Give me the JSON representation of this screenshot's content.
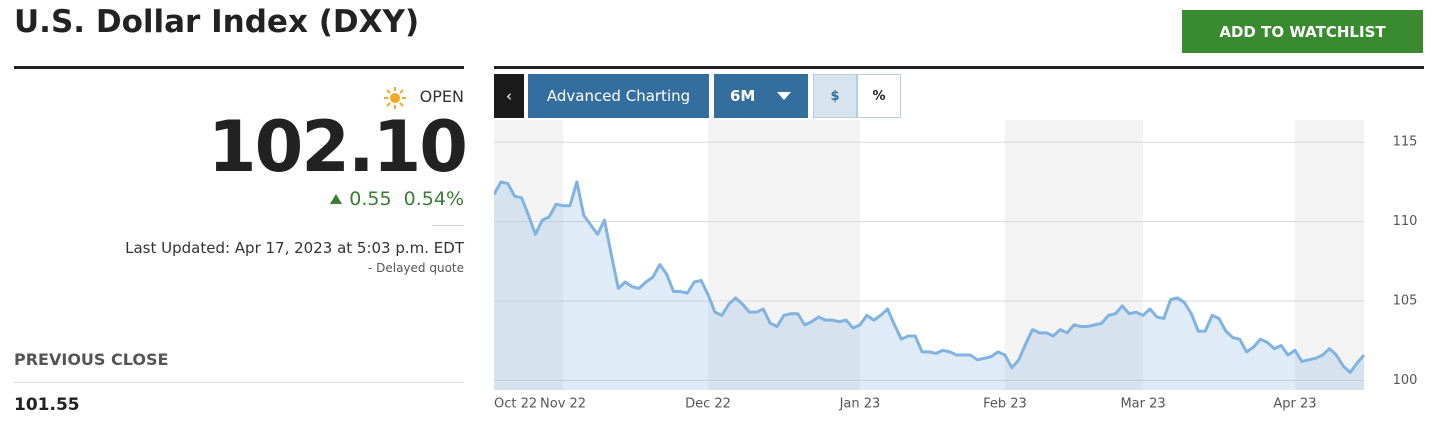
{
  "header": {
    "title": "U.S. Dollar Index (DXY)",
    "button": "ADD TO WATCHLIST"
  },
  "quote": {
    "status": "OPEN",
    "price": "102.10",
    "change": "0.55",
    "change_percent": "0.54%",
    "updated": "Last Updated: Apr 17, 2023 at 5:03 p.m. EDT",
    "delay": "-  Delayed quote",
    "previous_close_label": "PREVIOUS CLOSE",
    "previous_close": "101.55"
  },
  "toolbar": {
    "advanced": "Advanced Charting",
    "range": "6M",
    "dollar": "$",
    "percent": "%"
  },
  "chart_data": {
    "type": "area",
    "color": "#80b3e2",
    "categories": [
      "Oct 22",
      null,
      null,
      null,
      null,
      null,
      null,
      null,
      null,
      null,
      "Nov 22",
      null,
      null,
      null,
      null,
      null,
      null,
      null,
      null,
      null,
      null,
      null,
      null,
      null,
      null,
      null,
      null,
      null,
      null,
      null,
      null,
      "Dec 22",
      null,
      null,
      null,
      null,
      null,
      null,
      null,
      null,
      null,
      null,
      null,
      null,
      null,
      null,
      null,
      null,
      null,
      null,
      null,
      null,
      null,
      "Jan 23",
      null,
      null,
      null,
      null,
      null,
      null,
      null,
      null,
      null,
      null,
      null,
      null,
      null,
      null,
      null,
      null,
      null,
      null,
      null,
      null,
      "Feb 23",
      null,
      null,
      null,
      null,
      null,
      null,
      null,
      null,
      null,
      null,
      null,
      null,
      null,
      null,
      null,
      null,
      null,
      null,
      null,
      "Mar 23",
      null,
      null,
      null,
      null,
      null,
      null,
      null,
      null,
      null,
      null,
      null,
      null,
      null,
      null,
      null,
      null,
      null,
      null,
      null,
      null,
      null,
      "Apr 23",
      null,
      null,
      null,
      null,
      null,
      null,
      null,
      null,
      null,
      null
    ],
    "values": [
      111.7,
      112.5,
      112.4,
      111.6,
      111.5,
      110.4,
      109.2,
      110.1,
      110.3,
      111.1,
      111.0,
      111.0,
      112.5,
      110.4,
      109.8,
      109.2,
      110.1,
      107.9,
      105.8,
      106.2,
      105.9,
      105.8,
      106.2,
      106.5,
      107.3,
      106.7,
      105.6,
      105.6,
      105.5,
      106.2,
      106.3,
      105.4,
      104.3,
      104.1,
      104.8,
      105.2,
      104.8,
      104.3,
      104.3,
      104.5,
      103.6,
      103.4,
      104.1,
      104.2,
      104.2,
      103.5,
      103.7,
      104.0,
      103.8,
      103.8,
      103.7,
      103.8,
      103.3,
      103.5,
      104.1,
      103.8,
      104.1,
      104.5,
      103.5,
      102.6,
      102.8,
      102.8,
      101.8,
      101.8,
      101.7,
      101.9,
      101.8,
      101.6,
      101.6,
      101.6,
      101.3,
      101.4,
      101.5,
      101.8,
      101.6,
      100.8,
      101.3,
      102.3,
      103.2,
      103.0,
      103.0,
      102.8,
      103.2,
      103.0,
      103.5,
      103.4,
      103.4,
      103.5,
      103.6,
      104.1,
      104.2,
      104.7,
      104.2,
      104.3,
      104.1,
      104.5,
      104.0,
      103.9,
      105.1,
      105.2,
      104.9,
      104.2,
      103.1,
      103.1,
      104.1,
      103.9,
      103.1,
      102.7,
      102.6,
      101.8,
      102.1,
      102.6,
      102.4,
      102.0,
      102.2,
      101.6,
      101.9,
      101.2,
      101.3,
      101.4,
      101.6,
      102.0,
      101.6,
      100.9,
      100.5,
      101.1,
      101.6
    ],
    "ylim": [
      99.4,
      116.4
    ],
    "yticks": [
      100,
      105,
      110,
      115
    ],
    "grid": true,
    "y_axis_side": "right"
  }
}
